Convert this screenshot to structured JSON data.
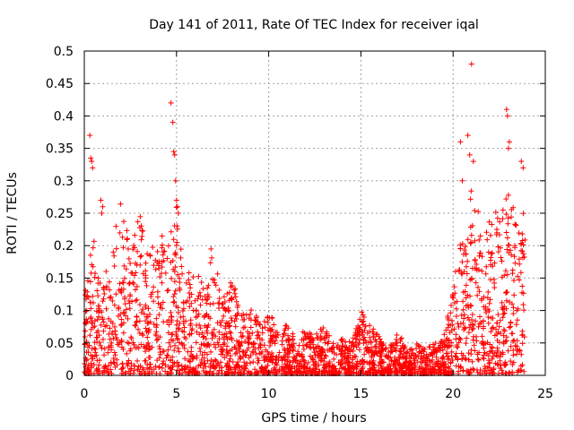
{
  "chart_data": {
    "type": "scatter",
    "title": "Day 141 of 2011, Rate Of TEC Index for receiver iqal",
    "xlabel": "GPS time / hours",
    "ylabel": "ROTI / TECUs",
    "xlim": [
      0,
      25
    ],
    "ylim": [
      0,
      0.5
    ],
    "xticks": [
      0,
      5,
      10,
      15,
      20,
      25
    ],
    "xtick_labels": [
      "0",
      "5",
      "10",
      "15",
      "20",
      "25"
    ],
    "yticks": [
      0,
      0.05,
      0.1,
      0.15,
      0.2,
      0.25,
      0.3,
      0.35,
      0.4,
      0.45,
      0.5
    ],
    "ytick_labels": [
      "0",
      "0.05",
      "0.1",
      "0.15",
      "0.2",
      "0.25",
      "0.3",
      "0.35",
      "0.4",
      "0.45",
      "0.5"
    ],
    "grid": true,
    "marker": "plus",
    "series": [
      {
        "name": "ROTI",
        "color": "#ff0000",
        "envelope": {
          "x": [
            0,
            0.5,
            1,
            1.5,
            2,
            2.5,
            3,
            3.5,
            4,
            4.5,
            5,
            5.5,
            6,
            6.5,
            7,
            7.5,
            8,
            8.5,
            9,
            9.5,
            10,
            10.5,
            11,
            11.5,
            12,
            12.5,
            13,
            13.5,
            14,
            14.5,
            15,
            15.5,
            16,
            16.5,
            17,
            17.5,
            18,
            18.5,
            19,
            19.5,
            20,
            20.5,
            21,
            21.5,
            22,
            22.5,
            23,
            23.5,
            23.9
          ],
          "y": [
            0.12,
            0.22,
            0.14,
            0.2,
            0.27,
            0.2,
            0.25,
            0.18,
            0.24,
            0.2,
            0.26,
            0.15,
            0.18,
            0.14,
            0.22,
            0.12,
            0.17,
            0.09,
            0.12,
            0.08,
            0.1,
            0.07,
            0.08,
            0.06,
            0.07,
            0.06,
            0.08,
            0.05,
            0.06,
            0.05,
            0.1,
            0.08,
            0.06,
            0.04,
            0.07,
            0.04,
            0.05,
            0.04,
            0.05,
            0.06,
            0.14,
            0.22,
            0.3,
            0.25,
            0.28,
            0.24,
            0.3,
            0.22,
            0.26
          ]
        },
        "outliers": {
          "x": [
            0.3,
            0.35,
            0.4,
            0.45,
            0.9,
            0.95,
            1.0,
            4.7,
            4.8,
            4.85,
            4.9,
            4.95,
            5.0,
            5.05,
            5.1,
            20.4,
            20.5,
            20.8,
            20.9,
            21.0,
            21.1,
            22.9,
            22.95,
            23.0,
            23.05,
            23.7,
            23.8
          ],
          "y": [
            0.37,
            0.335,
            0.33,
            0.32,
            0.27,
            0.25,
            0.26,
            0.42,
            0.39,
            0.345,
            0.34,
            0.3,
            0.27,
            0.26,
            0.25,
            0.36,
            0.3,
            0.37,
            0.34,
            0.48,
            0.33,
            0.41,
            0.4,
            0.35,
            0.36,
            0.33,
            0.32
          ]
        }
      }
    ]
  }
}
